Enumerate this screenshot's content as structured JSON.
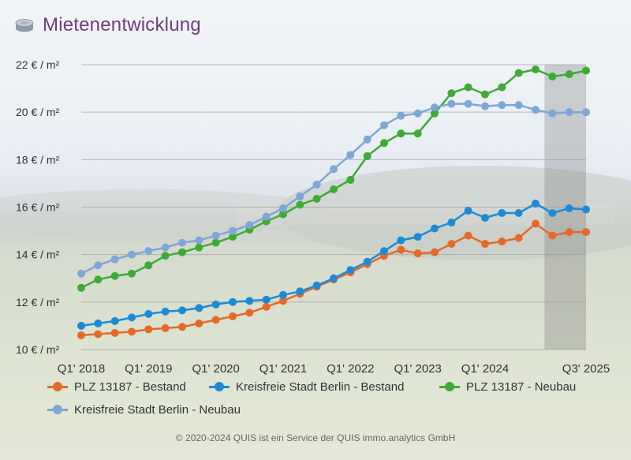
{
  "header": {
    "title": "Mietenentwicklung",
    "icon": "coin-stack-icon"
  },
  "footer": {
    "copyright": "© 2020-2024 QUIS ist ein Service der QUIS immo.analytics GmbH"
  },
  "chart_data": {
    "type": "line",
    "title": "Mietenentwicklung",
    "y_unit": "€ / m²",
    "ylim": [
      10,
      22
    ],
    "y_ticks": [
      {
        "value": 22,
        "label": "22 € / m²"
      },
      {
        "value": 20,
        "label": "20 € / m²"
      },
      {
        "value": 18,
        "label": "18 € / m²"
      },
      {
        "value": 16,
        "label": "16 € / m²"
      },
      {
        "value": 14,
        "label": "14 € / m²"
      },
      {
        "value": 12,
        "label": "12 € / m²"
      },
      {
        "value": 10,
        "label": "10 € / m²"
      }
    ],
    "x_ticks": [
      {
        "index": 0,
        "label": "Q1' 2018"
      },
      {
        "index": 4,
        "label": "Q1' 2019"
      },
      {
        "index": 8,
        "label": "Q1' 2020"
      },
      {
        "index": 12,
        "label": "Q1' 2021"
      },
      {
        "index": 16,
        "label": "Q1' 2022"
      },
      {
        "index": 20,
        "label": "Q1' 2023"
      },
      {
        "index": 24,
        "label": "Q1' 2024"
      },
      {
        "index": 30,
        "label": "Q3' 2025"
      }
    ],
    "forecast_from_index": 28,
    "grid": true,
    "legend_position": "bottom",
    "series": [
      {
        "name": "PLZ 13187 - Bestand",
        "color": "#e5692a",
        "values": [
          10.6,
          10.65,
          10.7,
          10.75,
          10.85,
          10.9,
          10.95,
          11.1,
          11.25,
          11.4,
          11.55,
          11.8,
          12.05,
          12.35,
          12.65,
          12.95,
          13.25,
          13.6,
          13.95,
          14.2,
          14.05,
          14.1,
          14.45,
          14.8,
          14.45,
          14.55,
          14.7,
          15.3,
          14.8,
          14.95,
          14.95
        ]
      },
      {
        "name": "Kreisfreie Stadt Berlin - Bestand",
        "color": "#1e8ad6",
        "values": [
          11.0,
          11.1,
          11.2,
          11.35,
          11.5,
          11.6,
          11.65,
          11.75,
          11.9,
          12.0,
          12.05,
          12.1,
          12.3,
          12.45,
          12.7,
          13.0,
          13.35,
          13.7,
          14.15,
          14.6,
          14.75,
          15.1,
          15.35,
          15.85,
          15.55,
          15.75,
          15.75,
          16.15,
          15.75,
          15.95,
          15.9
        ]
      },
      {
        "name": "PLZ 13187 - Neubau",
        "color": "#3faa37",
        "values": [
          12.6,
          12.95,
          13.1,
          13.2,
          13.55,
          13.95,
          14.1,
          14.3,
          14.5,
          14.75,
          15.05,
          15.4,
          15.7,
          16.1,
          16.35,
          16.75,
          17.15,
          18.15,
          18.7,
          19.1,
          19.1,
          19.95,
          20.8,
          21.05,
          20.75,
          21.05,
          21.65,
          21.8,
          21.5,
          21.6,
          21.75
        ]
      },
      {
        "name": "Kreisfreie Stadt Berlin - Neubau",
        "color": "#7fa6d6",
        "values": [
          13.2,
          13.55,
          13.8,
          14.0,
          14.15,
          14.3,
          14.5,
          14.6,
          14.8,
          15.0,
          15.25,
          15.6,
          15.95,
          16.45,
          16.95,
          17.6,
          18.2,
          18.85,
          19.45,
          19.85,
          19.95,
          20.2,
          20.35,
          20.35,
          20.25,
          20.3,
          20.3,
          20.1,
          19.95,
          20.0,
          20.0
        ]
      }
    ]
  }
}
